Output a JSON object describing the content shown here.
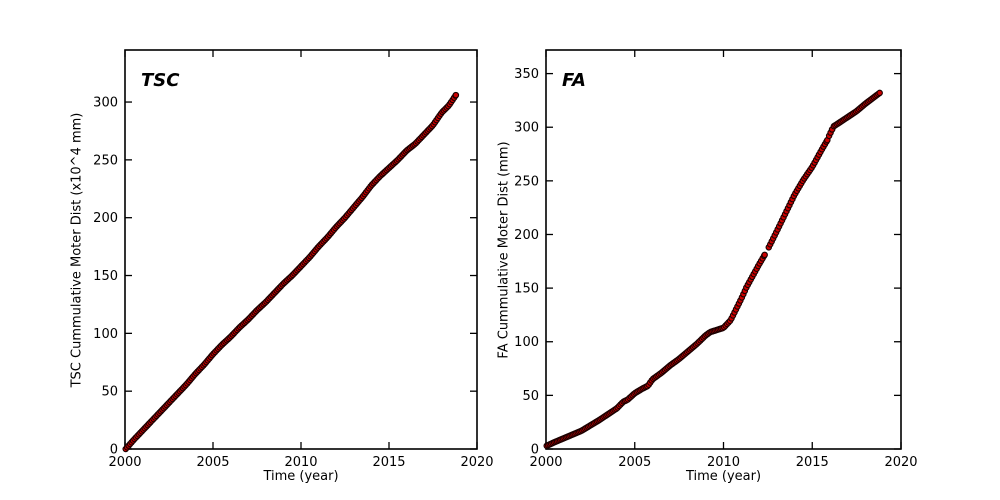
{
  "figure": {
    "background": "#ffffff",
    "frame_color": "#000000",
    "tick_color": "#000000"
  },
  "chart_data": [
    {
      "type": "scatter",
      "title": "TSC",
      "xlabel": "Time (year)",
      "ylabel": "TSC Cummulative Moter Dist (x10^4 mm)",
      "xlim": [
        2000,
        2020
      ],
      "ylim": [
        0,
        345
      ],
      "xticks": [
        2000,
        2005,
        2010,
        2015,
        2020
      ],
      "yticks": [
        0,
        50,
        100,
        150,
        200,
        250,
        300
      ],
      "grid": false,
      "legend": "none",
      "marker": {
        "shape": "circle",
        "fill": "#cc0000",
        "edge": "#1a0000",
        "radius": 2.7,
        "edge_width": 1.1
      },
      "sample_step_years": 0.0833,
      "segments": [
        [
          2000.04,
          2018.8
        ]
      ],
      "points": [
        [
          2000.04,
          0
        ],
        [
          2000.5,
          8
        ],
        [
          2001,
          16
        ],
        [
          2001.5,
          24
        ],
        [
          2002,
          32
        ],
        [
          2002.5,
          40
        ],
        [
          2003,
          48
        ],
        [
          2003.5,
          56
        ],
        [
          2004,
          65
        ],
        [
          2004.5,
          73
        ],
        [
          2005,
          82
        ],
        [
          2005.5,
          90
        ],
        [
          2006,
          97
        ],
        [
          2006.5,
          105
        ],
        [
          2007,
          112
        ],
        [
          2007.5,
          120
        ],
        [
          2008,
          127
        ],
        [
          2008.5,
          135
        ],
        [
          2009,
          143
        ],
        [
          2009.5,
          150
        ],
        [
          2010,
          158
        ],
        [
          2010.5,
          166
        ],
        [
          2011,
          175
        ],
        [
          2011.5,
          183
        ],
        [
          2012,
          192
        ],
        [
          2012.5,
          200
        ],
        [
          2013,
          209
        ],
        [
          2013.5,
          218
        ],
        [
          2014,
          228
        ],
        [
          2014.5,
          236
        ],
        [
          2015,
          243
        ],
        [
          2015.5,
          250
        ],
        [
          2016,
          258
        ],
        [
          2016.5,
          264
        ],
        [
          2017,
          272
        ],
        [
          2017.5,
          280
        ],
        [
          2018,
          291
        ],
        [
          2018.4,
          297
        ],
        [
          2018.8,
          306
        ]
      ]
    },
    {
      "type": "scatter",
      "title": "FA",
      "xlabel": "Time (year)",
      "ylabel": "FA Cummulative Moter Dist (mm)",
      "xlim": [
        2000,
        2020
      ],
      "ylim": [
        0,
        372
      ],
      "xticks": [
        2000,
        2005,
        2010,
        2015,
        2020
      ],
      "yticks": [
        0,
        50,
        100,
        150,
        200,
        250,
        300,
        350
      ],
      "grid": false,
      "legend": "none",
      "marker": {
        "shape": "circle",
        "fill": "#cc0000",
        "edge": "#1a0000",
        "radius": 2.7,
        "edge_width": 1.1
      },
      "sample_step_years": 0.0833,
      "segments": [
        [
          2000.04,
          2012.32
        ],
        [
          2012.55,
          2015.85
        ],
        [
          2015.95,
          2016.12
        ],
        [
          2016.22,
          2018.8
        ]
      ],
      "points": [
        [
          2000.04,
          3
        ],
        [
          2000.5,
          6.5
        ],
        [
          2001,
          10
        ],
        [
          2001.5,
          13.5
        ],
        [
          2002,
          17
        ],
        [
          2002.5,
          22
        ],
        [
          2003,
          27
        ],
        [
          2003.5,
          32.5
        ],
        [
          2004,
          38
        ],
        [
          2004.35,
          44
        ],
        [
          2004.6,
          46
        ],
        [
          2005,
          52
        ],
        [
          2005.4,
          56
        ],
        [
          2005.75,
          59
        ],
        [
          2006,
          65
        ],
        [
          2006.5,
          71
        ],
        [
          2007,
          78
        ],
        [
          2007.5,
          84
        ],
        [
          2008,
          91
        ],
        [
          2008.5,
          98
        ],
        [
          2009,
          106
        ],
        [
          2009.25,
          109
        ],
        [
          2010,
          113
        ],
        [
          2010.4,
          120
        ],
        [
          2010.7,
          130
        ],
        [
          2011,
          140
        ],
        [
          2011.3,
          151
        ],
        [
          2012,
          172
        ],
        [
          2012.32,
          181
        ],
        [
          2012.55,
          188
        ],
        [
          2013,
          203
        ],
        [
          2013.5,
          220
        ],
        [
          2014,
          237
        ],
        [
          2014.5,
          251
        ],
        [
          2015,
          263
        ],
        [
          2015.3,
          272
        ],
        [
          2015.6,
          281
        ],
        [
          2015.85,
          288
        ],
        [
          2015.95,
          292
        ],
        [
          2016.12,
          298
        ],
        [
          2016.22,
          301
        ],
        [
          2016.5,
          304
        ],
        [
          2017,
          309.5
        ],
        [
          2017.5,
          315
        ],
        [
          2018,
          322
        ],
        [
          2018.4,
          327
        ],
        [
          2018.8,
          332
        ]
      ]
    }
  ]
}
